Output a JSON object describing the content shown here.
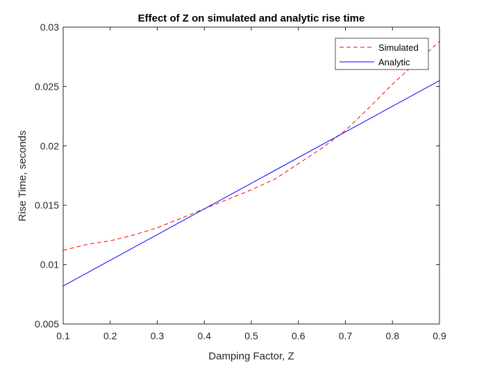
{
  "chart_data": {
    "type": "line",
    "title": "Effect of Z on simulated and analytic rise time",
    "xlabel": "Damping Factor, Z",
    "ylabel": "Rise Time, seconds",
    "xlim": [
      0.1,
      0.9
    ],
    "ylim": [
      0.005,
      0.03
    ],
    "xticks": [
      "0.1",
      "0.2",
      "0.3",
      "0.4",
      "0.5",
      "0.6",
      "0.7",
      "0.8",
      "0.9"
    ],
    "yticks": [
      "0.005",
      "0.01",
      "0.015",
      "0.02",
      "0.025",
      "0.03"
    ],
    "legend_position": "top-right",
    "grid": false,
    "series": [
      {
        "name": "Simulated",
        "color": "#ff0000",
        "style": "dashed",
        "x": [
          0.1,
          0.15,
          0.2,
          0.25,
          0.3,
          0.35,
          0.4,
          0.45,
          0.5,
          0.55,
          0.6,
          0.65,
          0.7,
          0.75,
          0.8,
          0.85,
          0.9
        ],
        "y": [
          0.0112,
          0.0117,
          0.012,
          0.0125,
          0.0131,
          0.0139,
          0.0147,
          0.0155,
          0.0163,
          0.0172,
          0.0185,
          0.0198,
          0.0213,
          0.0232,
          0.0252,
          0.027,
          0.0288
        ]
      },
      {
        "name": "Analytic",
        "color": "#0000ff",
        "style": "solid",
        "x": [
          0.1,
          0.9
        ],
        "y": [
          0.0082,
          0.0255
        ]
      }
    ]
  }
}
